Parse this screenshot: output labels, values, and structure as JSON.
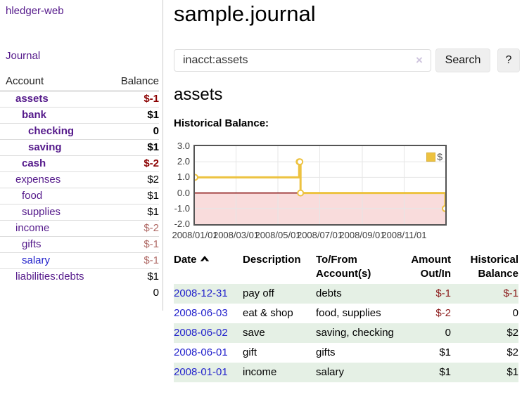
{
  "colors": {
    "link_purple": "#551a8b",
    "link_blue": "#2222cc",
    "negative_strong": "#8b0000",
    "negative_soft": "#b06a66",
    "table_negative": "#8b1a1a",
    "row_stripe_green": "#e5f0e5",
    "series_gold": "#edc240",
    "negative_region_pink": "#f9dcdc",
    "zero_line_red": "#800000",
    "chart_border_gray": "#545454"
  },
  "sidebar": {
    "app_title": "hledger-web",
    "journal_link": "Journal",
    "table_header": {
      "account": "Account",
      "balance": "Balance"
    },
    "accounts": [
      {
        "name": "assets",
        "balance": "$-1",
        "indent": 1,
        "bold": true,
        "balance_style": "neg-strong"
      },
      {
        "name": "bank",
        "balance": "$1",
        "indent": 2,
        "bold": true,
        "balance_style": "pos"
      },
      {
        "name": "checking",
        "balance": "0",
        "indent": 3,
        "bold": true,
        "balance_style": "pos"
      },
      {
        "name": "saving",
        "balance": "$1",
        "indent": 3,
        "bold": true,
        "balance_style": "pos"
      },
      {
        "name": "cash",
        "balance": "$-2",
        "indent": 2,
        "bold": true,
        "balance_style": "neg-strong"
      },
      {
        "name": "expenses",
        "balance": "$2",
        "indent": 1,
        "bold": false,
        "balance_style": "pos"
      },
      {
        "name": "food",
        "balance": "$1",
        "indent": 2,
        "bold": false,
        "balance_style": "pos"
      },
      {
        "name": "supplies",
        "balance": "$1",
        "indent": 2,
        "bold": false,
        "balance_style": "pos"
      },
      {
        "name": "income",
        "balance": "$-2",
        "indent": 1,
        "bold": false,
        "balance_style": "neg-soft"
      },
      {
        "name": "gifts",
        "balance": "$-1",
        "indent": 2,
        "bold": false,
        "balance_style": "neg-soft"
      },
      {
        "name": "salary",
        "balance": "$-1",
        "indent": 2,
        "bold": false,
        "balance_style": "neg-soft",
        "link_color": "blue"
      },
      {
        "name": "liabilities:debts",
        "balance": "$1",
        "indent": 1,
        "bold": false,
        "balance_style": "pos"
      }
    ],
    "total": "0"
  },
  "main": {
    "page_title": "sample.journal",
    "search": {
      "value": "inacct:assets",
      "clear_icon": "×",
      "search_button": "Search",
      "help_button": "?"
    },
    "account_heading": "assets",
    "chart_title": "Historical Balance:"
  },
  "chart_data": {
    "type": "line",
    "title": "Historical Balance",
    "legend": "$",
    "legend_position": "top-right",
    "style": "steps",
    "grid": true,
    "ylim": [
      -2,
      3
    ],
    "xlim_days": [
      0,
      365
    ],
    "y_ticks": [
      "3.0",
      "2.0",
      "1.0",
      "0.0",
      "-1.0",
      "-2.0"
    ],
    "x_ticks": [
      {
        "label": "2008/01/01",
        "day": 0
      },
      {
        "label": "2008/03/01",
        "day": 60
      },
      {
        "label": "2008/05/01",
        "day": 121
      },
      {
        "label": "2008/07/01",
        "day": 182
      },
      {
        "label": "2008/09/01",
        "day": 244
      },
      {
        "label": "2008/11/01",
        "day": 305
      }
    ],
    "series": [
      {
        "name": "$",
        "color": "#edc240",
        "points": [
          {
            "date": "2008-01-01",
            "day": 0,
            "value": 1
          },
          {
            "date": "2008-06-01",
            "day": 152,
            "value": 2
          },
          {
            "date": "2008-06-02",
            "day": 153,
            "value": 2
          },
          {
            "date": "2008-06-03",
            "day": 154,
            "value": 0
          },
          {
            "date": "2008-12-31",
            "day": 365,
            "value": -1
          }
        ]
      }
    ]
  },
  "register": {
    "columns": [
      "Date",
      "Description",
      "To/From Account(s)",
      "Amount Out/In",
      "Historical Balance"
    ],
    "sort_column": "Date",
    "sort_direction": "ascending",
    "rows": [
      {
        "date": "2008-12-31",
        "description": "pay off",
        "accounts": "debts",
        "amount": "$-1",
        "amount_neg": true,
        "balance": "$-1",
        "balance_neg": true
      },
      {
        "date": "2008-06-03",
        "description": "eat & shop",
        "accounts": "food, supplies",
        "amount": "$-2",
        "amount_neg": true,
        "balance": "0",
        "balance_neg": false
      },
      {
        "date": "2008-06-02",
        "description": "save",
        "accounts": "saving, checking",
        "amount": "0",
        "amount_neg": false,
        "balance": "$2",
        "balance_neg": false
      },
      {
        "date": "2008-06-01",
        "description": "gift",
        "accounts": "gifts",
        "amount": "$1",
        "amount_neg": false,
        "balance": "$2",
        "balance_neg": false
      },
      {
        "date": "2008-01-01",
        "description": "income",
        "accounts": "salary",
        "amount": "$1",
        "amount_neg": false,
        "balance": "$1",
        "balance_neg": false
      }
    ]
  }
}
